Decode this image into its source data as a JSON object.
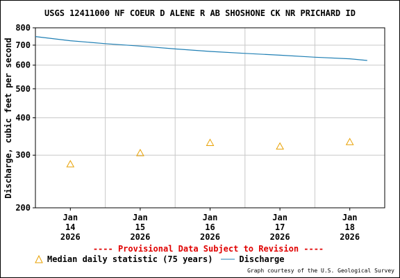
{
  "chart_data": {
    "type": "line",
    "title": "USGS 12411000 NF COEUR D ALENE R AB SHOSHONE CK NR PRICHARD ID",
    "ylabel": "Discharge, cubic feet per second",
    "xlabel": "",
    "yscale": "log",
    "ylim": [
      200,
      800
    ],
    "yticks": [
      200,
      300,
      400,
      500,
      600,
      700,
      800
    ],
    "xlim": [
      "2026-01-13T12:00",
      "2026-01-18T12:00"
    ],
    "xticks": [
      {
        "date": "2026-01-14",
        "lines": [
          "Jan",
          "14",
          "2026"
        ]
      },
      {
        "date": "2026-01-15",
        "lines": [
          "Jan",
          "15",
          "2026"
        ]
      },
      {
        "date": "2026-01-16",
        "lines": [
          "Jan",
          "16",
          "2026"
        ]
      },
      {
        "date": "2026-01-17",
        "lines": [
          "Jan",
          "17",
          "2026"
        ]
      },
      {
        "date": "2026-01-18",
        "lines": [
          "Jan",
          "18",
          "2026"
        ]
      }
    ],
    "grid": true,
    "series": [
      {
        "name": "Discharge",
        "kind": "line",
        "color": "#1f7fb4",
        "x": [
          "2026-01-13T12:00",
          "2026-01-14T00:00",
          "2026-01-14T12:00",
          "2026-01-15T00:00",
          "2026-01-15T12:00",
          "2026-01-16T00:00",
          "2026-01-16T12:00",
          "2026-01-17T00:00",
          "2026-01-17T12:00",
          "2026-01-18T00:00",
          "2026-01-18T06:00"
        ],
        "y": [
          748,
          724,
          708,
          695,
          680,
          667,
          657,
          648,
          638,
          630,
          622
        ]
      },
      {
        "name": "Median daily statistic (75 years)",
        "kind": "marker",
        "marker": "triangle",
        "color": "#e8a000",
        "x": [
          "2026-01-14",
          "2026-01-15",
          "2026-01-16",
          "2026-01-17",
          "2026-01-18"
        ],
        "y": [
          280,
          305,
          330,
          321,
          332
        ]
      }
    ]
  },
  "provisional_note": "---- Provisional Data Subject to Revision ----",
  "legend": {
    "median_label": "Median daily statistic (75 years)",
    "discharge_label": "Discharge"
  },
  "credit": "Graph courtesy of the U.S. Geological Survey"
}
